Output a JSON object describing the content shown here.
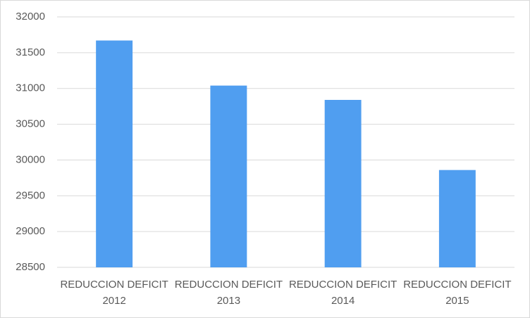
{
  "chart_data": {
    "type": "bar",
    "categories": [
      "REDUCCION DEFICIT 2012",
      "REDUCCION DEFICIT 2013",
      "REDUCCION DEFICIT 2014",
      "REDUCCION DEFICIT 2015"
    ],
    "values": [
      31670,
      31040,
      30840,
      29860
    ],
    "color": "#509ef0",
    "ylim": [
      28500,
      32000
    ],
    "yticks": [
      28500,
      29000,
      29500,
      30000,
      30500,
      31000,
      31500,
      32000
    ],
    "grid": true
  }
}
